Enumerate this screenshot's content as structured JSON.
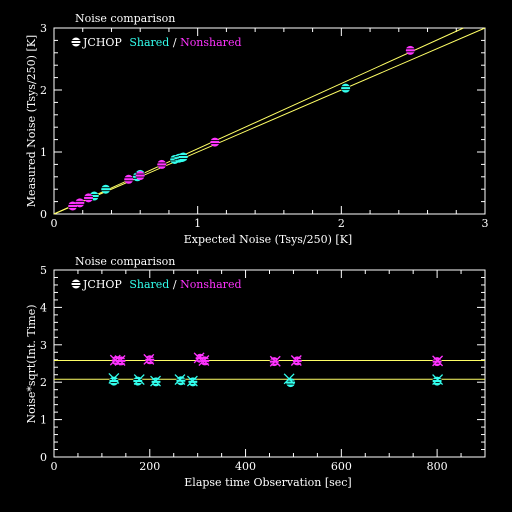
{
  "colors": {
    "background": "#000000",
    "axes": "#ffffff",
    "fit_line": "#ffff66",
    "shared": "#33ffee",
    "nonshared": "#ff33ff"
  },
  "chart_data": [
    {
      "type": "scatter",
      "title": "Noise comparison",
      "legend": {
        "prefix": "JCHOP",
        "shared": "Shared",
        "separator": "/",
        "nonshared": "Nonshared"
      },
      "xlabel": "Expected Noise (Tsys/250) [K]",
      "ylabel": "Measured Noise (Tsys/250) [K]",
      "xlim": [
        0,
        3
      ],
      "ylim": [
        0,
        3
      ],
      "xticks": [
        "0",
        "1",
        "2",
        "3"
      ],
      "yticks": [
        "0",
        "1",
        "2",
        "3"
      ],
      "lines": [
        {
          "x": [
            0,
            3
          ],
          "y": [
            0,
            3.0
          ]
        },
        {
          "x": [
            0,
            2.85
          ],
          "y": [
            0,
            3.0
          ]
        }
      ],
      "series": [
        {
          "name": "Shared",
          "marker": "circle",
          "color": "#33ffee",
          "x": [
            0.28,
            0.36,
            0.58,
            0.6,
            0.84,
            0.87,
            0.89,
            0.9,
            2.03
          ],
          "y": [
            0.29,
            0.4,
            0.6,
            0.64,
            0.88,
            0.9,
            0.91,
            0.92,
            2.03
          ]
        },
        {
          "name": "Nonshared",
          "marker": "circle",
          "color": "#ff33ff",
          "x": [
            0.13,
            0.18,
            0.24,
            0.52,
            0.6,
            0.75,
            1.12,
            2.48
          ],
          "y": [
            0.13,
            0.18,
            0.26,
            0.56,
            0.62,
            0.8,
            1.16,
            2.64
          ]
        }
      ]
    },
    {
      "type": "scatter",
      "title": "Noise comparison",
      "legend": {
        "prefix": "JCHOP",
        "shared": "Shared",
        "separator": "/",
        "nonshared": "Nonshared"
      },
      "xlabel": "Elapse time Observation [sec]",
      "ylabel": "Noise*sqrt(Int. Time)",
      "xlim": [
        0,
        900
      ],
      "ylim": [
        0,
        5
      ],
      "xticks": [
        "0",
        "200",
        "400",
        "600",
        "800"
      ],
      "yticks": [
        "0",
        "1",
        "2",
        "3",
        "4",
        "5"
      ],
      "hlines": [
        2.58,
        2.08
      ],
      "series": [
        {
          "name": "Shared",
          "marker": "circle",
          "color": "#33ffee",
          "x": [
            125,
            175,
            213,
            265,
            290,
            494,
            800
          ],
          "y": [
            2.03,
            2.03,
            2.01,
            2.04,
            2.01,
            1.99,
            2.03
          ]
        },
        {
          "name": "Shared",
          "marker": "cross",
          "color": "#33ffee",
          "x": [
            125,
            178,
            212,
            263,
            289,
            491,
            801
          ],
          "y": [
            2.1,
            2.07,
            2.03,
            2.07,
            2.03,
            2.09,
            2.07
          ]
        },
        {
          "name": "Nonshared",
          "marker": "circle",
          "color": "#ff33ff",
          "x": [
            130,
            140,
            200,
            305,
            315,
            460,
            508,
            800
          ],
          "y": [
            2.58,
            2.57,
            2.6,
            2.64,
            2.57,
            2.55,
            2.57,
            2.55
          ]
        },
        {
          "name": "Nonshared",
          "marker": "cross",
          "color": "#ff33ff",
          "x": [
            128,
            138,
            198,
            303,
            313,
            462,
            506,
            801
          ],
          "y": [
            2.59,
            2.58,
            2.61,
            2.65,
            2.58,
            2.56,
            2.58,
            2.57
          ]
        }
      ]
    }
  ]
}
